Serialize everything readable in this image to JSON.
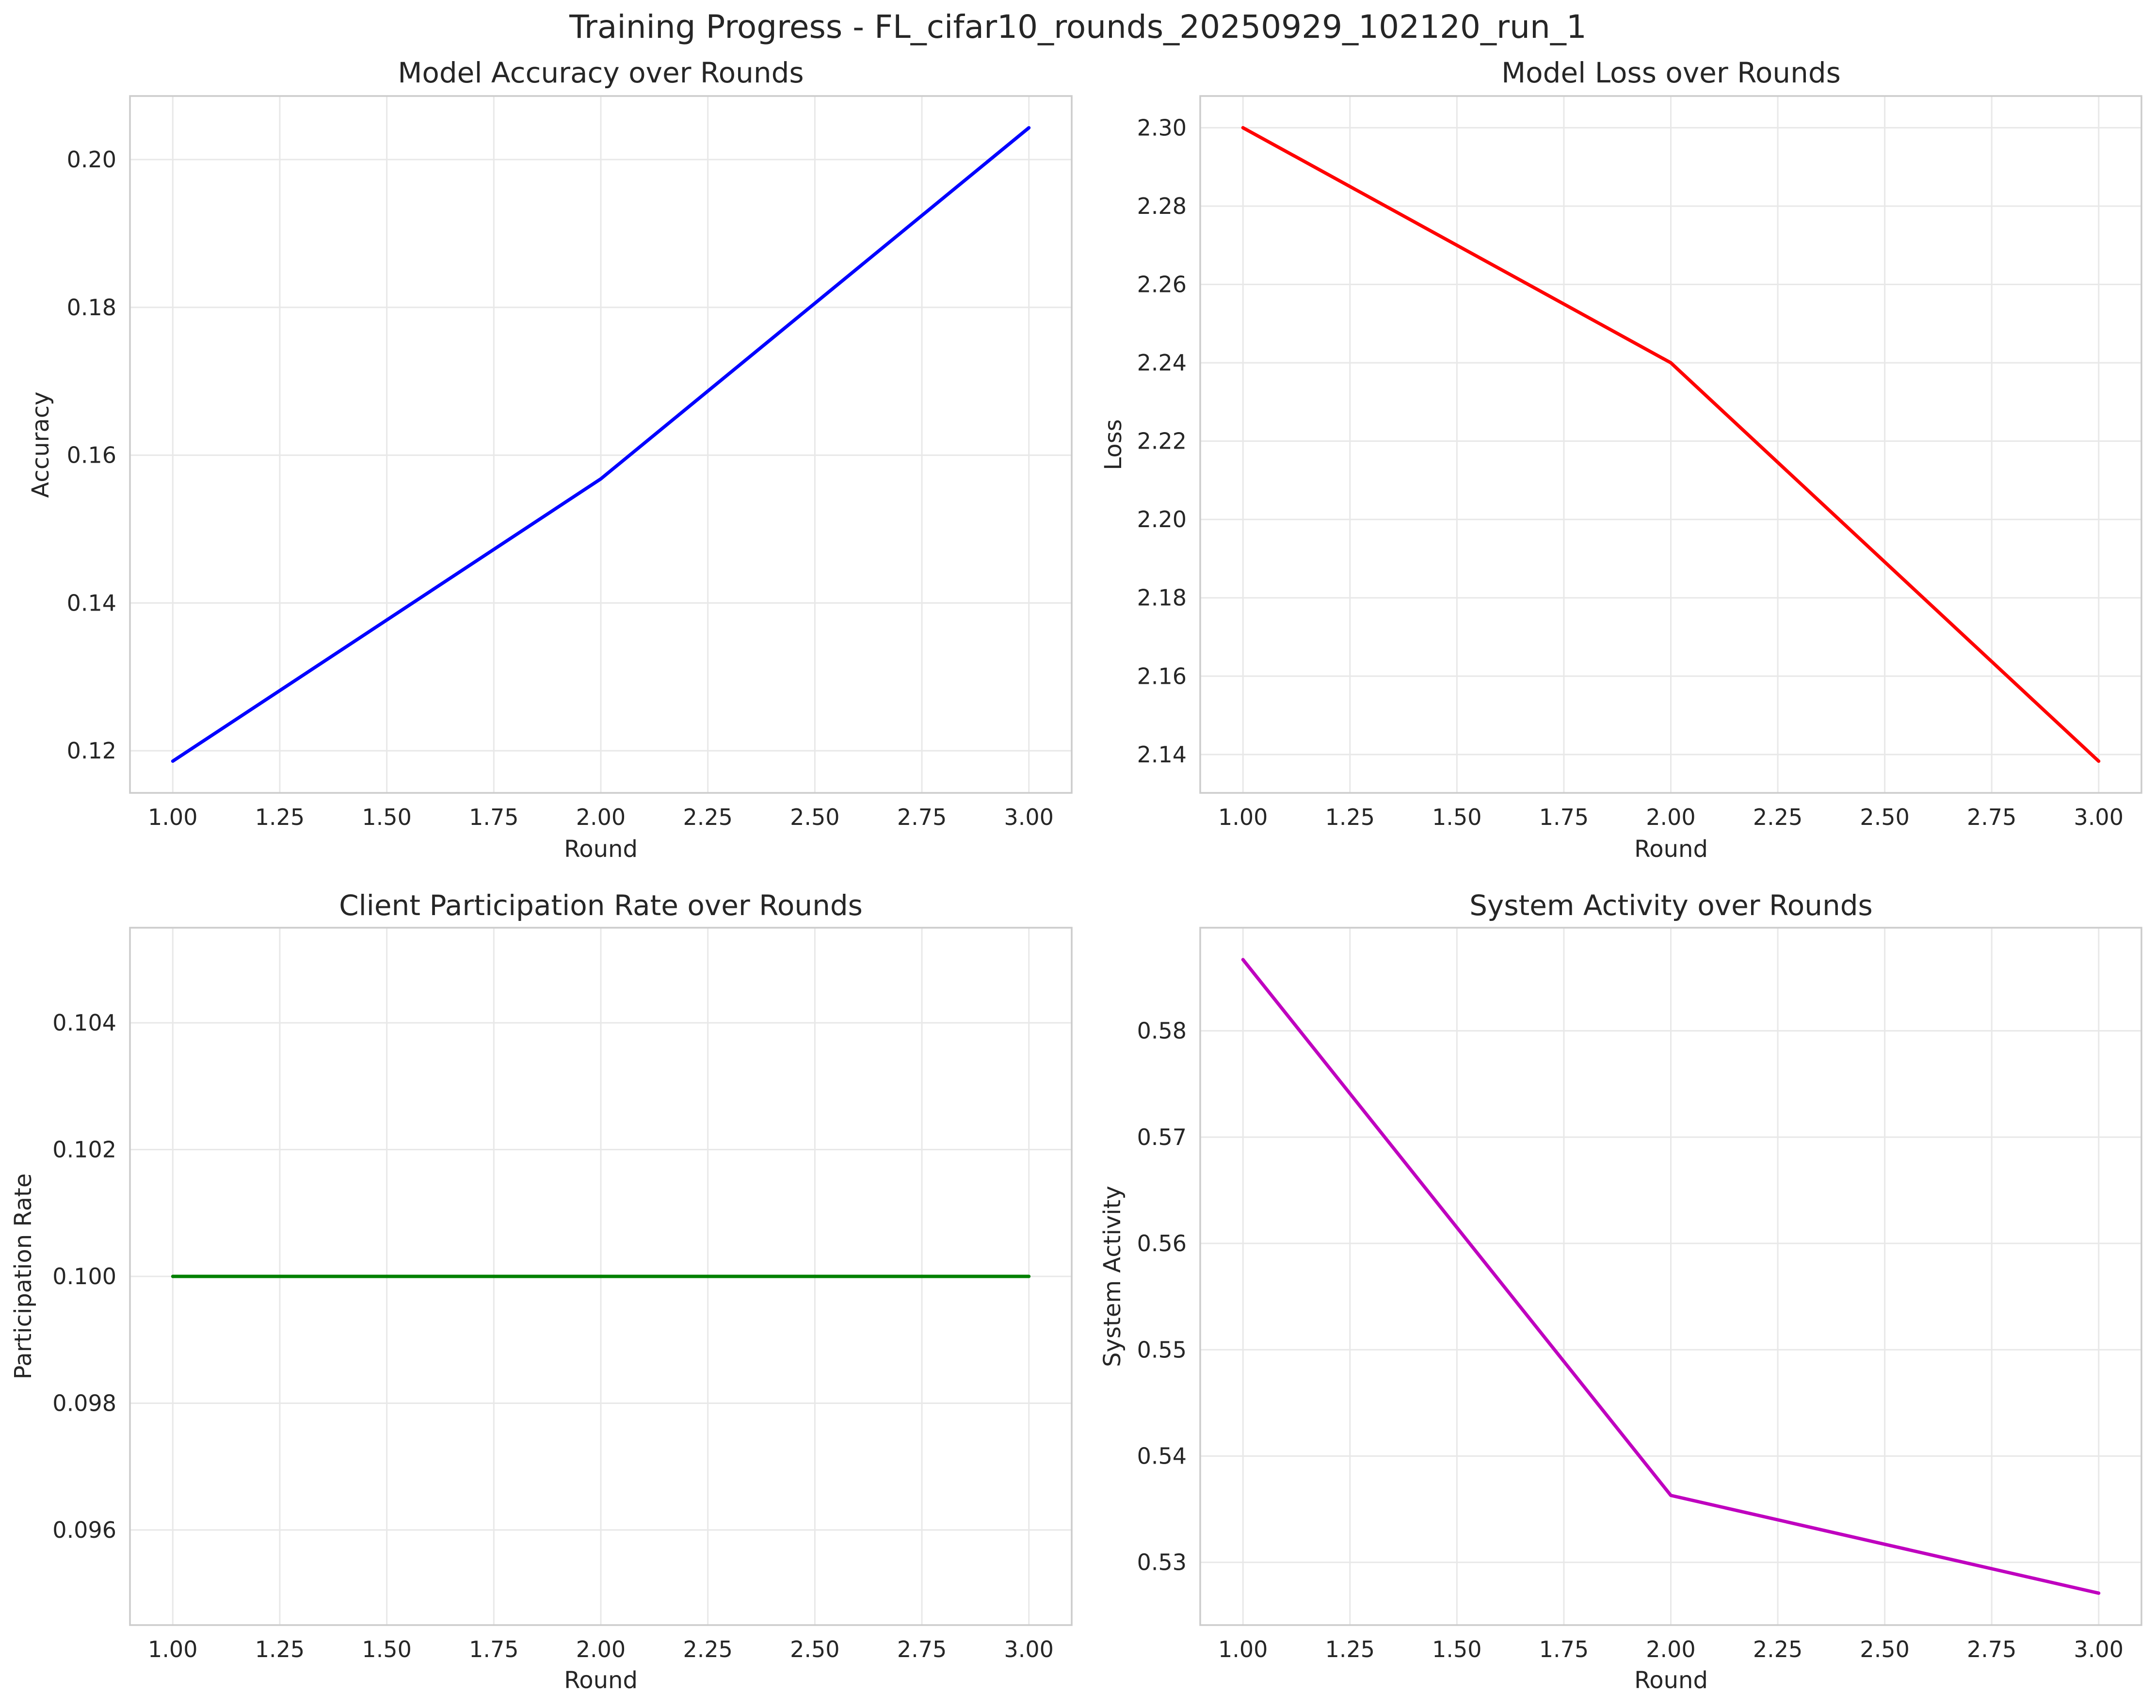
{
  "figure": {
    "title": "Training Progress - FL_cifar10_rounds_20250929_102120_run_1"
  },
  "chart_data": [
    {
      "type": "line",
      "title": "Model Accuracy over Rounds",
      "xlabel": "Round",
      "ylabel": "Accuracy",
      "xlim": [
        0.9,
        3.1
      ],
      "ylim": [
        0.1143,
        0.2086
      ],
      "xticks": [
        1.0,
        1.25,
        1.5,
        1.75,
        2.0,
        2.25,
        2.5,
        2.75,
        3.0
      ],
      "xtick_labels": [
        "1.00",
        "1.25",
        "1.50",
        "1.75",
        "2.00",
        "2.25",
        "2.50",
        "2.75",
        "3.00"
      ],
      "yticks": [
        0.12,
        0.14,
        0.16,
        0.18,
        0.2
      ],
      "ytick_labels": [
        "0.12",
        "0.14",
        "0.16",
        "0.18",
        "0.20"
      ],
      "grid": true,
      "color": "#0000ff",
      "x": [
        1,
        2,
        3
      ],
      "y": [
        0.1186,
        0.1568,
        0.2043
      ]
    },
    {
      "type": "line",
      "title": "Model Loss over Rounds",
      "xlabel": "Round",
      "ylabel": "Loss",
      "xlim": [
        0.9,
        3.1
      ],
      "ylim": [
        2.1302,
        2.3081
      ],
      "xticks": [
        1.0,
        1.25,
        1.5,
        1.75,
        2.0,
        2.25,
        2.5,
        2.75,
        3.0
      ],
      "xtick_labels": [
        "1.00",
        "1.25",
        "1.50",
        "1.75",
        "2.00",
        "2.25",
        "2.50",
        "2.75",
        "3.00"
      ],
      "yticks": [
        2.14,
        2.16,
        2.18,
        2.2,
        2.22,
        2.24,
        2.26,
        2.28,
        2.3
      ],
      "ytick_labels": [
        "2.14",
        "2.16",
        "2.18",
        "2.20",
        "2.22",
        "2.24",
        "2.26",
        "2.28",
        "2.30"
      ],
      "grid": true,
      "color": "#ff0000",
      "x": [
        1,
        2,
        3
      ],
      "y": [
        2.3,
        2.24,
        2.1383
      ]
    },
    {
      "type": "line",
      "title": "Client Participation Rate over Rounds",
      "xlabel": "Round",
      "ylabel": "Participation Rate",
      "xlim": [
        0.9,
        3.1
      ],
      "ylim": [
        0.0945,
        0.1055
      ],
      "xticks": [
        1.0,
        1.25,
        1.5,
        1.75,
        2.0,
        2.25,
        2.5,
        2.75,
        3.0
      ],
      "xtick_labels": [
        "1.00",
        "1.25",
        "1.50",
        "1.75",
        "2.00",
        "2.25",
        "2.50",
        "2.75",
        "3.00"
      ],
      "yticks": [
        0.096,
        0.098,
        0.1,
        0.102,
        0.104
      ],
      "ytick_labels": [
        "0.096",
        "0.098",
        "0.100",
        "0.102",
        "0.104"
      ],
      "grid": true,
      "color": "#008000",
      "x": [
        1,
        2,
        3
      ],
      "y": [
        0.1,
        0.1,
        0.1
      ]
    },
    {
      "type": "line",
      "title": "System Activity over Rounds",
      "xlabel": "Round",
      "ylabel": "System Activity",
      "xlim": [
        0.9,
        3.1
      ],
      "ylim": [
        0.5241,
        0.5897
      ],
      "xticks": [
        1.0,
        1.25,
        1.5,
        1.75,
        2.0,
        2.25,
        2.5,
        2.75,
        3.0
      ],
      "xtick_labels": [
        "1.00",
        "1.25",
        "1.50",
        "1.75",
        "2.00",
        "2.25",
        "2.50",
        "2.75",
        "3.00"
      ],
      "yticks": [
        0.53,
        0.54,
        0.55,
        0.56,
        0.57,
        0.58
      ],
      "ytick_labels": [
        "0.53",
        "0.54",
        "0.55",
        "0.56",
        "0.57",
        "0.58"
      ],
      "grid": true,
      "color": "#bf00bf",
      "x": [
        1,
        2,
        3
      ],
      "y": [
        0.5867,
        0.5363,
        0.5271
      ]
    }
  ]
}
